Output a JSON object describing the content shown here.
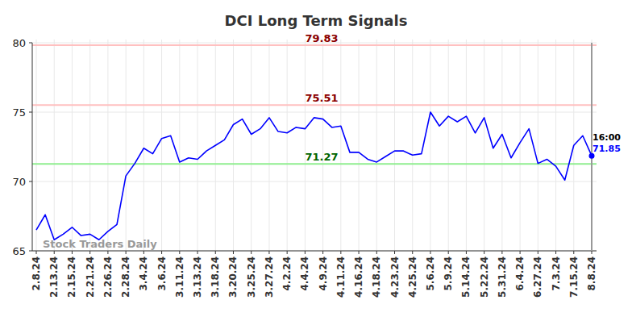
{
  "chart_data": {
    "type": "line",
    "title": "DCI Long Term Signals",
    "categories": [
      "2.8.24",
      null,
      "2.13.24",
      null,
      "2.15.24",
      null,
      "2.21.24",
      null,
      "2.26.24",
      null,
      "2.28.24",
      null,
      "3.4.24",
      null,
      "3.6.24",
      null,
      "3.11.24",
      null,
      "3.13.24",
      null,
      "3.18.24",
      null,
      "3.20.24",
      null,
      "3.25.24",
      null,
      "3.27.24",
      null,
      "4.2.24",
      null,
      "4.4.24",
      null,
      "4.9.24",
      null,
      "4.11.24",
      null,
      "4.16.24",
      null,
      "4.18.24",
      null,
      "4.23.24",
      null,
      "4.25.24",
      null,
      "5.6.24",
      null,
      "5.9.24",
      null,
      "5.14.24",
      null,
      "5.22.24",
      null,
      "5.31.24",
      null,
      "6.4.24",
      null,
      "6.27.24",
      null,
      "7.3.24",
      null,
      "7.15.24",
      null,
      "8.8.24"
    ],
    "values": [
      66.5,
      67.6,
      65.8,
      66.2,
      66.7,
      66.1,
      66.2,
      65.8,
      66.4,
      66.9,
      70.4,
      71.3,
      72.4,
      72.0,
      73.1,
      73.3,
      71.4,
      71.7,
      71.6,
      72.2,
      72.6,
      73.0,
      74.1,
      74.5,
      73.4,
      73.8,
      74.6,
      73.6,
      73.5,
      73.9,
      73.8,
      74.6,
      74.5,
      73.9,
      74.0,
      72.1,
      72.1,
      71.6,
      71.4,
      71.8,
      72.2,
      72.2,
      71.9,
      72.0,
      75.0,
      74.0,
      74.7,
      74.3,
      74.7,
      73.5,
      74.6,
      72.4,
      73.4,
      71.7,
      72.8,
      73.8,
      71.3,
      71.6,
      71.1,
      70.1,
      72.6,
      73.3,
      71.85
    ],
    "color": "#0000ff",
    "ylim": [
      65,
      80
    ],
    "yticks": [
      65,
      70,
      75,
      80
    ],
    "grid": true,
    "levels": [
      {
        "value": 79.83,
        "color": "#ffc0c0"
      },
      {
        "value": 75.51,
        "color": "#ffc0c0"
      },
      {
        "value": 71.27,
        "color": "#90ee90"
      }
    ],
    "last_time": "16:00",
    "watermark": "Stock Traders Daily"
  }
}
